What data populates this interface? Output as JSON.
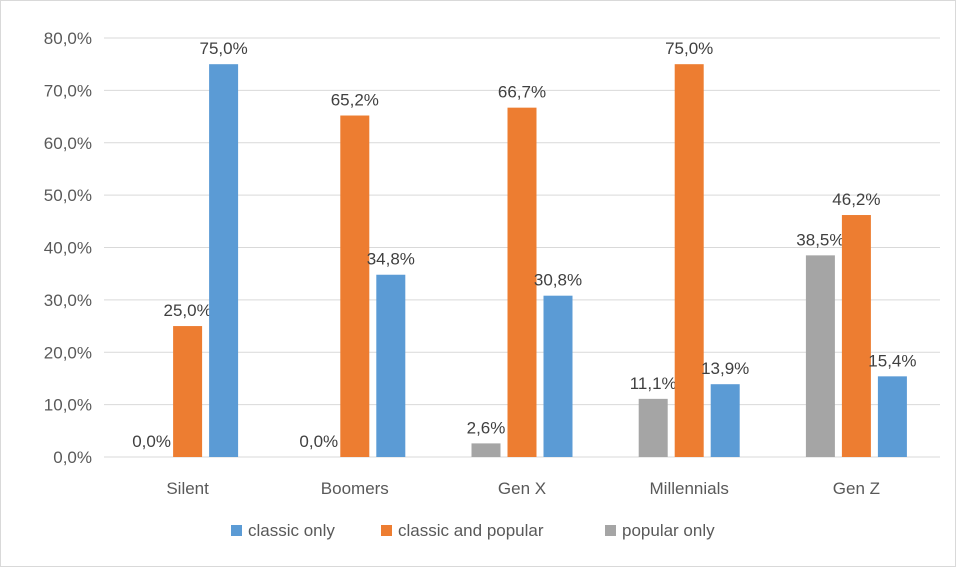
{
  "chart_data": {
    "type": "bar",
    "categories": [
      "Silent",
      "Boomers",
      "Gen X",
      "Millennials",
      "Gen Z"
    ],
    "series": [
      {
        "name": "popular only",
        "color": "#a5a5a5",
        "values": [
          0.0,
          0.0,
          2.6,
          11.1,
          38.5
        ],
        "labels": [
          "0,0%",
          "0,0%",
          "2,6%",
          "11,1%",
          "38,5%"
        ]
      },
      {
        "name": "classic and popular",
        "color": "#ed7d31",
        "values": [
          25.0,
          65.2,
          66.7,
          75.0,
          46.2
        ],
        "labels": [
          "25,0%",
          "65,2%",
          "66,7%",
          "75,0%",
          "46,2%"
        ]
      },
      {
        "name": "classic only",
        "color": "#5b9bd5",
        "values": [
          75.0,
          34.8,
          30.8,
          13.9,
          15.4
        ],
        "labels": [
          "75,0%",
          "34,8%",
          "30,8%",
          "13,9%",
          "15,4%"
        ]
      }
    ],
    "legend_order": [
      "classic only",
      "classic and popular",
      "popular only"
    ],
    "ylim": [
      0,
      80
    ],
    "yticks": [
      0,
      10,
      20,
      30,
      40,
      50,
      60,
      70,
      80
    ],
    "ytick_labels": [
      "0,0%",
      "10,0%",
      "20,0%",
      "30,0%",
      "40,0%",
      "50,0%",
      "60,0%",
      "70,0%",
      "80,0%"
    ],
    "grid": true,
    "legend_position": "bottom",
    "title": "",
    "xlabel": "",
    "ylabel": "",
    "gridline_color": "#d9d9d9"
  }
}
